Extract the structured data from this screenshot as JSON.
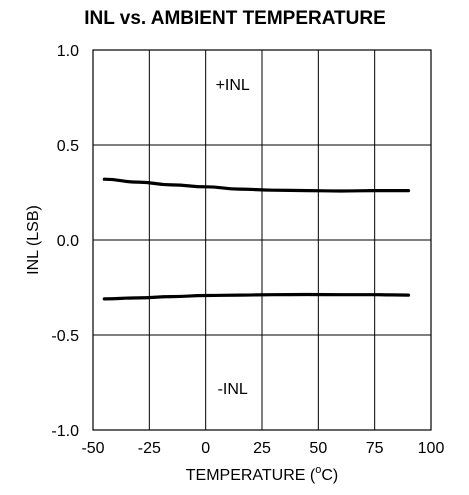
{
  "chart_data": {
    "type": "line",
    "title": "INL vs. AMBIENT TEMPERATURE",
    "xlabel": "TEMPERATURE (°C)",
    "xlabel_main": "TEMPERATURE (",
    "xlabel_sup": "o",
    "xlabel_end": "C)",
    "ylabel": "INL (LSB)",
    "xlim": [
      -50,
      100
    ],
    "ylim": [
      -1.0,
      1.0
    ],
    "xticks": [
      -50,
      -25,
      0,
      25,
      50,
      75,
      100
    ],
    "xtick_labels": [
      "-50",
      "-25",
      "0",
      "25",
      "50",
      "75",
      "100"
    ],
    "yticks": [
      1.0,
      0.5,
      0.0,
      -0.5,
      -1.0
    ],
    "ytick_labels": [
      "1.0",
      "0.5",
      "0.0",
      "-0.5",
      "-1.0"
    ],
    "grid": true,
    "series": [
      {
        "x": [
          -45,
          -30,
          -15,
          0,
          15,
          30,
          45,
          60,
          75,
          90
        ],
        "y": [
          0.32,
          0.305,
          0.29,
          0.28,
          0.268,
          0.262,
          0.26,
          0.258,
          0.26,
          0.26
        ]
      },
      {
        "x": [
          -45,
          -30,
          -15,
          0,
          15,
          30,
          45,
          60,
          75,
          90
        ],
        "y": [
          -0.31,
          -0.305,
          -0.298,
          -0.292,
          -0.29,
          -0.288,
          -0.287,
          -0.288,
          -0.288,
          -0.29
        ]
      }
    ],
    "annotations": [
      {
        "text": "+INL",
        "x": 12,
        "y": 0.82
      },
      {
        "text": "-INL",
        "x": 12,
        "y": -0.78
      }
    ]
  }
}
